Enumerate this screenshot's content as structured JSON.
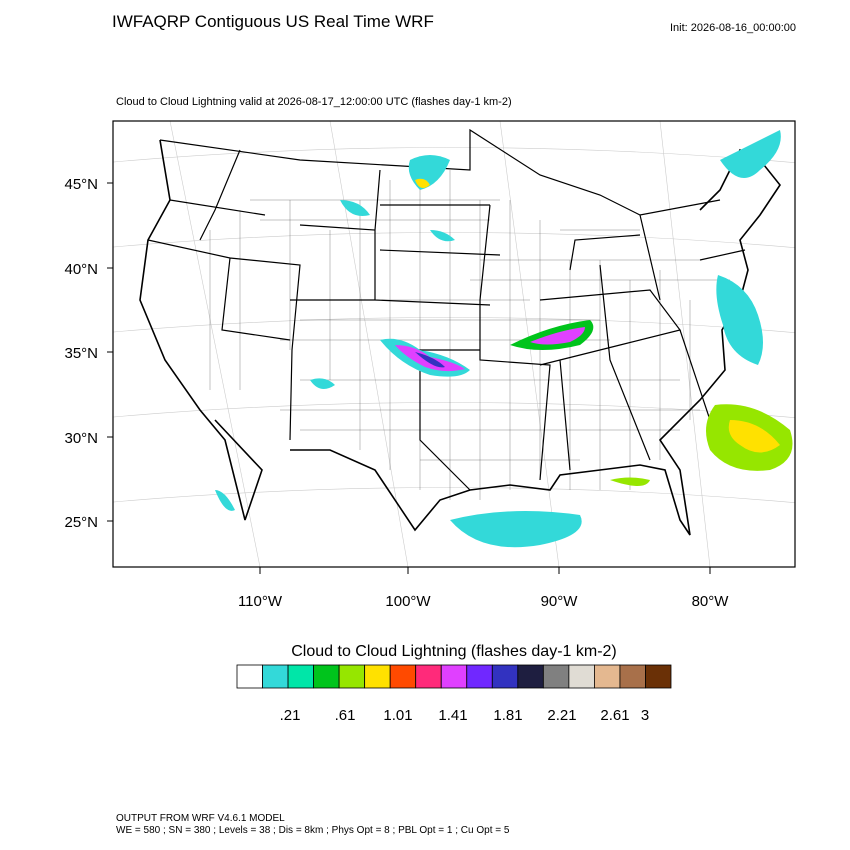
{
  "header": {
    "title": "IWFAQRP Contiguous US Real Time WRF",
    "init": "Init: 2026-08-16_00:00:00"
  },
  "map": {
    "subtitle": "Cloud to Cloud Lightning valid at 2026-08-17_12:00:00 UTC   (flashes day-1 km-2)",
    "lat_labels": [
      "45°N",
      "40°N",
      "35°N",
      "30°N",
      "25°N"
    ],
    "lon_labels": [
      "110°W",
      "100°W",
      "90°W",
      "80°W"
    ]
  },
  "colorbar": {
    "title": "Cloud to Cloud Lightning  (flashes day-1 km-2)",
    "colors": [
      "#ffffff",
      "#33d9d9",
      "#00e6a8",
      "#00c41c",
      "#96e600",
      "#ffe100",
      "#ff4a00",
      "#ff2a7a",
      "#e040ff",
      "#7028ff",
      "#3232c0",
      "#1e1e40",
      "#808080",
      "#e0dcd4",
      "#e4b890",
      "#a8704a",
      "#6a3006"
    ],
    "labels": [
      ".21",
      ".61",
      "1.01",
      "1.41",
      "1.81",
      "2.21",
      "2.61",
      "3"
    ]
  },
  "footer": {
    "line1": "OUTPUT FROM WRF V4.6.1 MODEL",
    "line2": "WE = 580 ; SN = 380 ; Levels = 38 ; Dis = 8km ; Phys Opt = 8 ; PBL Opt = 1 ; Cu Opt = 5"
  }
}
